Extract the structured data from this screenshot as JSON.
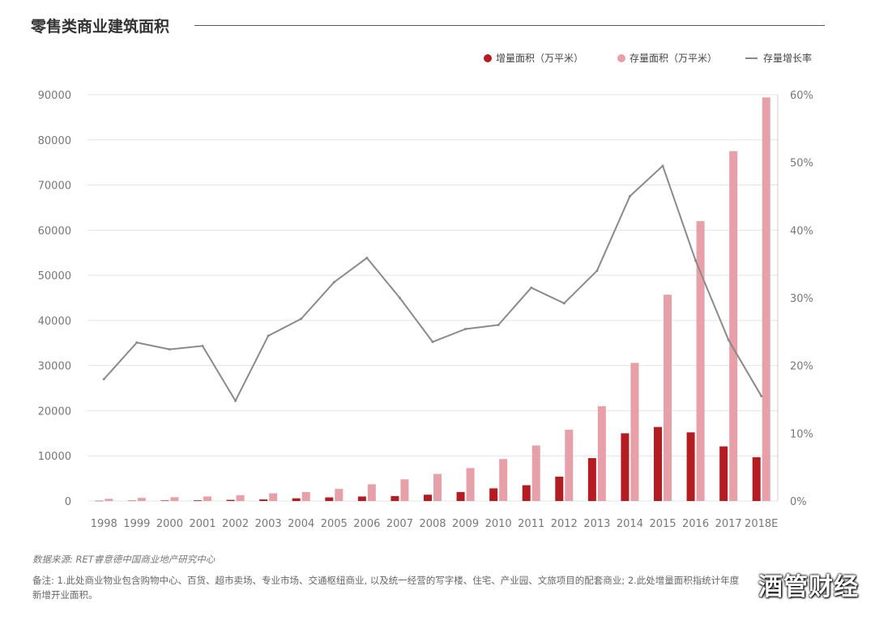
{
  "title": "零售类商业建筑面积",
  "source": "数据来源: RET睿意德中国商业地产研究中心",
  "note": "备注: 1.此处商业物业包含购物中心、百货、超市卖场、专业市场、交通枢纽商业, 以及统一经营的写字楼、住宅、产业园、文旅项目的配套商业; 2.此处增量面积指统计年度新增开业面积。",
  "watermark": "酒管财经",
  "legend": {
    "increment": "增量面积（万平米）",
    "stock": "存量面积（万平米）",
    "growth": "存量增长率"
  },
  "colors": {
    "increment": "#b51c22",
    "stock": "#e8a0a8",
    "growth": "#8a8a8a",
    "grid": "#e4e4e4"
  },
  "chart_data": {
    "type": "bar",
    "categories": [
      "1998",
      "1999",
      "2000",
      "2001",
      "2002",
      "2003",
      "2004",
      "2005",
      "2006",
      "2007",
      "2008",
      "2009",
      "2010",
      "2011",
      "2012",
      "2013",
      "2014",
      "2015",
      "2016",
      "2017",
      "2018E"
    ],
    "series": [
      {
        "name": "增量面积（万平米）",
        "type": "bar",
        "axis": "left",
        "values": [
          50,
          80,
          120,
          150,
          250,
          350,
          600,
          800,
          1000,
          1100,
          1400,
          2000,
          2800,
          3500,
          5400,
          9500,
          15000,
          16400,
          15200,
          12100,
          9700
        ]
      },
      {
        "name": "存量面积（万平米）",
        "type": "bar",
        "axis": "left",
        "values": [
          500,
          700,
          850,
          1000,
          1300,
          1700,
          2000,
          2700,
          3700,
          4800,
          6000,
          7300,
          9300,
          12300,
          15800,
          21000,
          30600,
          45700,
          62000,
          77500,
          89400
        ]
      },
      {
        "name": "存量增长率",
        "type": "line",
        "axis": "right",
        "values": [
          18,
          23.4,
          22.4,
          22.9,
          14.8,
          24.4,
          26.9,
          32.3,
          35.9,
          30,
          23.5,
          25.4,
          26,
          31.5,
          29.2,
          34,
          45,
          49.5,
          35.5,
          23.8,
          15.5
        ]
      }
    ],
    "y_left": {
      "ticks": [
        "0",
        "10000",
        "20000",
        "30000",
        "40000",
        "50000",
        "60000",
        "70000",
        "80000",
        "90000"
      ],
      "ylim": [
        0,
        90000
      ]
    },
    "y_right": {
      "ticks": [
        "0%",
        "10%",
        "20%",
        "30%",
        "40%",
        "50%",
        "60%"
      ],
      "ylim": [
        0,
        60
      ]
    },
    "grid": true,
    "legend_position": "top-right"
  }
}
